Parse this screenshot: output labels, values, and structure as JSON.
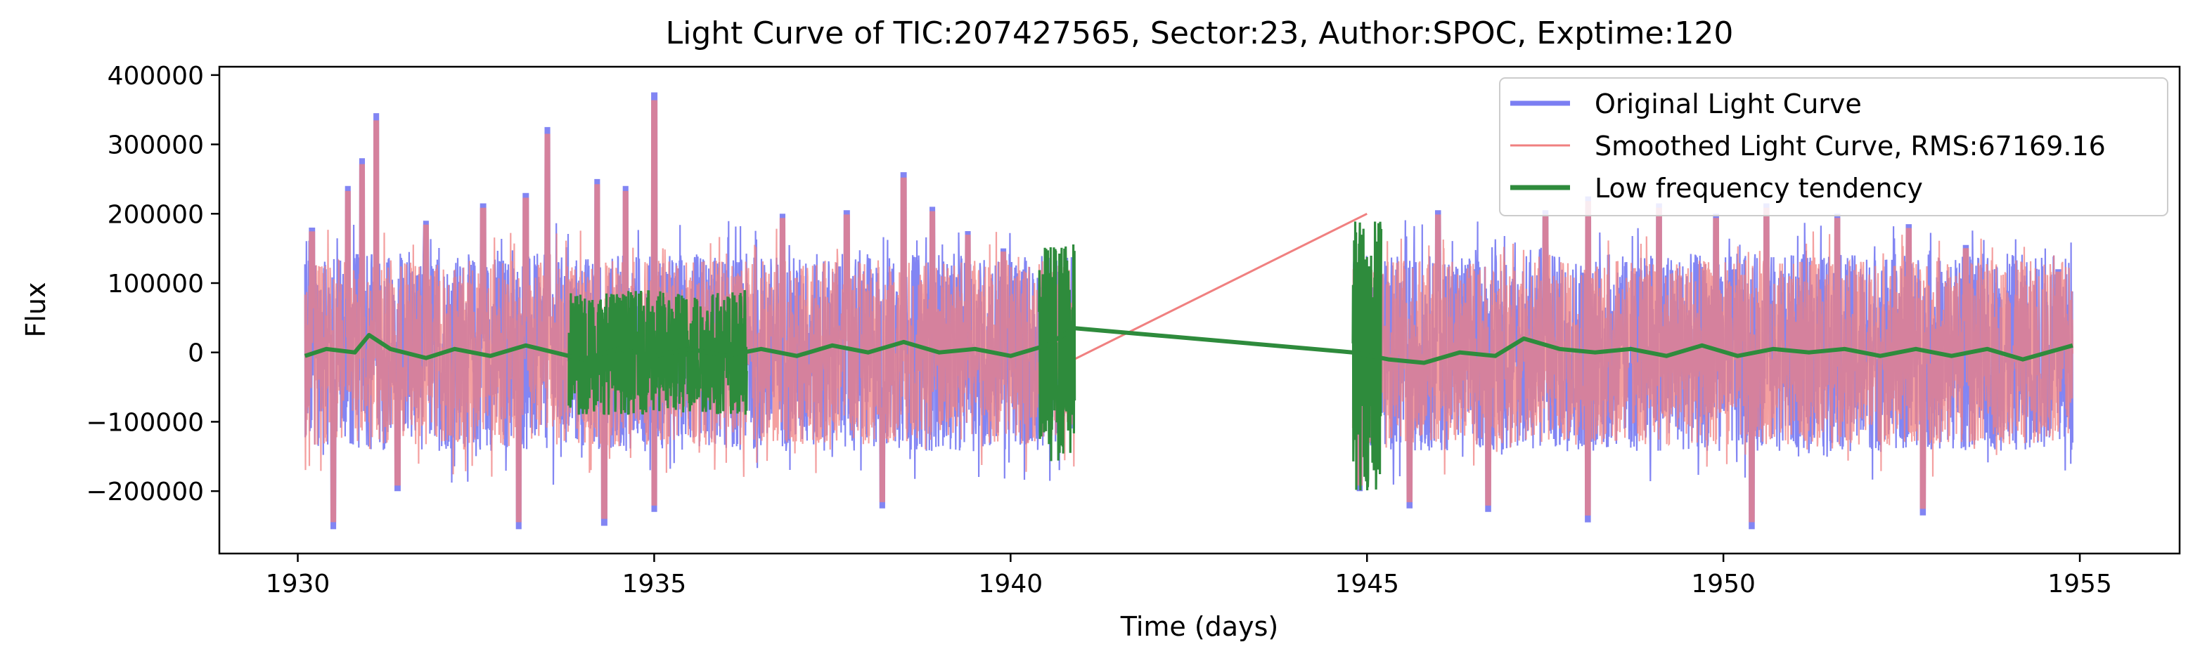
{
  "chart_data": {
    "type": "line",
    "title": "Light Curve of TIC:207427565, Sector:23, Author:SPOC, Exptime:120",
    "xlabel": "Time (days)",
    "ylabel": "Flux",
    "xlim": [
      1928.9,
      1956.4
    ],
    "ylim": [
      -290000,
      412000
    ],
    "x_ticks": [
      1930,
      1935,
      1940,
      1945,
      1950,
      1955
    ],
    "y_ticks": [
      -200000,
      -100000,
      0,
      100000,
      200000,
      300000,
      400000
    ],
    "grid": false,
    "legend_position": "top-right",
    "data_gap": [
      1940.9,
      1944.8
    ],
    "segments": [
      [
        1930.1,
        1940.9
      ],
      [
        1944.8,
        1954.9
      ]
    ],
    "series": [
      {
        "name": "Original Light Curve",
        "color": "#7b7ef2",
        "style": "band",
        "band_min": -255000,
        "band_max": 375000,
        "typical_range": [
          -150000,
          150000
        ],
        "peaks": [
          {
            "x": 1930.2,
            "y": 180000
          },
          {
            "x": 1930.7,
            "y": 240000
          },
          {
            "x": 1930.9,
            "y": 280000
          },
          {
            "x": 1931.1,
            "y": 345000
          },
          {
            "x": 1931.8,
            "y": 190000
          },
          {
            "x": 1932.6,
            "y": 215000
          },
          {
            "x": 1933.2,
            "y": 230000
          },
          {
            "x": 1933.5,
            "y": 325000
          },
          {
            "x": 1934.2,
            "y": 250000
          },
          {
            "x": 1934.6,
            "y": 240000
          },
          {
            "x": 1935.0,
            "y": 375000
          },
          {
            "x": 1936.8,
            "y": 200000
          },
          {
            "x": 1937.7,
            "y": 205000
          },
          {
            "x": 1938.5,
            "y": 260000
          },
          {
            "x": 1938.9,
            "y": 210000
          },
          {
            "x": 1939.4,
            "y": 175000
          },
          {
            "x": 1939.9,
            "y": 150000
          },
          {
            "x": 1946.0,
            "y": 205000
          },
          {
            "x": 1947.5,
            "y": 205000
          },
          {
            "x": 1948.1,
            "y": 225000
          },
          {
            "x": 1949.1,
            "y": 215000
          },
          {
            "x": 1949.9,
            "y": 200000
          },
          {
            "x": 1950.6,
            "y": 215000
          },
          {
            "x": 1951.6,
            "y": 200000
          },
          {
            "x": 1952.6,
            "y": 185000
          },
          {
            "x": 1953.4,
            "y": 155000
          },
          {
            "x": 1954.7,
            "y": 120000
          }
        ],
        "troughs": [
          {
            "x": 1930.5,
            "y": -255000
          },
          {
            "x": 1931.4,
            "y": -200000
          },
          {
            "x": 1933.1,
            "y": -255000
          },
          {
            "x": 1934.3,
            "y": -250000
          },
          {
            "x": 1935.0,
            "y": -230000
          },
          {
            "x": 1938.2,
            "y": -225000
          },
          {
            "x": 1944.9,
            "y": -200000
          },
          {
            "x": 1945.6,
            "y": -225000
          },
          {
            "x": 1946.7,
            "y": -230000
          },
          {
            "x": 1948.1,
            "y": -245000
          },
          {
            "x": 1950.4,
            "y": -255000
          },
          {
            "x": 1952.8,
            "y": -235000
          }
        ]
      },
      {
        "name": "Smoothed Light Curve, RMS:67169.16",
        "color": "#f08080",
        "style": "band",
        "band_min": -245000,
        "band_max": 365000,
        "typical_range": [
          -140000,
          140000
        ],
        "gap_line": [
          {
            "x": 1940.5,
            "y": -30000
          },
          {
            "x": 1945.0,
            "y": 200000
          }
        ]
      },
      {
        "name": "Low frequency tendency",
        "color": "#2e8b3c",
        "style": "line",
        "points": [
          {
            "x": 1930.1,
            "y": -5000
          },
          {
            "x": 1930.4,
            "y": 5000
          },
          {
            "x": 1930.8,
            "y": 0
          },
          {
            "x": 1931.0,
            "y": 25000
          },
          {
            "x": 1931.3,
            "y": 5000
          },
          {
            "x": 1931.8,
            "y": -8000
          },
          {
            "x": 1932.2,
            "y": 5000
          },
          {
            "x": 1932.7,
            "y": -5000
          },
          {
            "x": 1933.2,
            "y": 10000
          },
          {
            "x": 1933.6,
            "y": 0
          },
          {
            "x": 1934.0,
            "y": -10000
          },
          {
            "x": 1934.5,
            "y": 5000
          },
          {
            "x": 1935.0,
            "y": -5000
          },
          {
            "x": 1935.5,
            "y": 5000
          },
          {
            "x": 1936.0,
            "y": -5000
          },
          {
            "x": 1936.5,
            "y": 5000
          },
          {
            "x": 1937.0,
            "y": -5000
          },
          {
            "x": 1937.5,
            "y": 10000
          },
          {
            "x": 1938.0,
            "y": 0
          },
          {
            "x": 1938.5,
            "y": 15000
          },
          {
            "x": 1939.0,
            "y": 0
          },
          {
            "x": 1939.5,
            "y": 5000
          },
          {
            "x": 1940.0,
            "y": -5000
          },
          {
            "x": 1940.5,
            "y": 10000
          },
          {
            "x": 1940.9,
            "y": 35000
          },
          {
            "x": 1944.8,
            "y": 0
          },
          {
            "x": 1945.3,
            "y": -10000
          },
          {
            "x": 1945.8,
            "y": -15000
          },
          {
            "x": 1946.3,
            "y": 0
          },
          {
            "x": 1946.8,
            "y": -5000
          },
          {
            "x": 1947.2,
            "y": 20000
          },
          {
            "x": 1947.7,
            "y": 5000
          },
          {
            "x": 1948.2,
            "y": 0
          },
          {
            "x": 1948.7,
            "y": 5000
          },
          {
            "x": 1949.2,
            "y": -5000
          },
          {
            "x": 1949.7,
            "y": 10000
          },
          {
            "x": 1950.2,
            "y": -5000
          },
          {
            "x": 1950.7,
            "y": 5000
          },
          {
            "x": 1951.2,
            "y": 0
          },
          {
            "x": 1951.7,
            "y": 5000
          },
          {
            "x": 1952.2,
            "y": -5000
          },
          {
            "x": 1952.7,
            "y": 5000
          },
          {
            "x": 1953.2,
            "y": -5000
          },
          {
            "x": 1953.7,
            "y": 5000
          },
          {
            "x": 1954.2,
            "y": -10000
          },
          {
            "x": 1954.9,
            "y": 10000
          }
        ],
        "noisy_regions": [
          {
            "x_range": [
              1933.8,
              1936.3
            ],
            "amplitude": 90000
          },
          {
            "x_range": [
              1940.4,
              1940.9
            ],
            "amplitude": 160000
          },
          {
            "x_range": [
              1944.8,
              1945.2
            ],
            "amplitude": 200000
          }
        ]
      }
    ]
  }
}
